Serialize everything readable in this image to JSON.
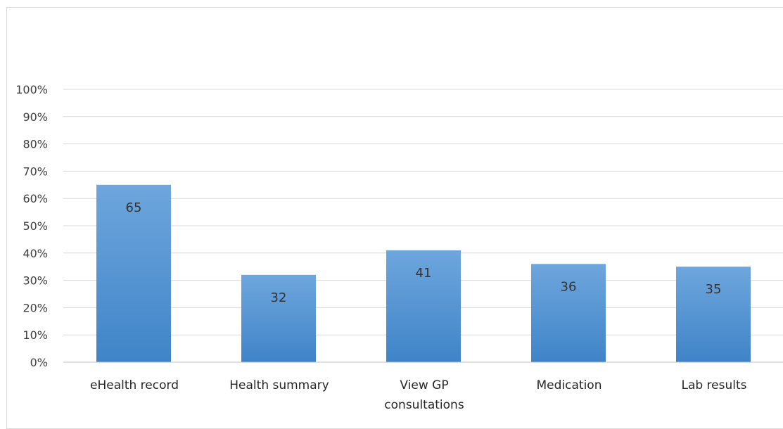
{
  "chart_data": {
    "type": "bar",
    "categories": [
      "eHealth record",
      "Health summary",
      "View GP consultations",
      "Medication",
      "Lab results"
    ],
    "category_lines": [
      [
        "eHealth record"
      ],
      [
        "Health summary"
      ],
      [
        "View GP",
        "consultations"
      ],
      [
        "Medication"
      ],
      [
        "Lab results"
      ]
    ],
    "values": [
      65,
      32,
      41,
      36,
      35
    ],
    "data_labels": [
      "65",
      "32",
      "41",
      "36",
      "35"
    ],
    "ylim": [
      0,
      100
    ],
    "yticks": [
      0,
      10,
      20,
      30,
      40,
      50,
      60,
      70,
      80,
      90,
      100
    ],
    "ytick_labels": [
      "0%",
      "10%",
      "20%",
      "30%",
      "40%",
      "50%",
      "60%",
      "70%",
      "80%",
      "90%",
      "100%"
    ],
    "grid": true,
    "colors": {
      "bar_top": "#6ea6dd",
      "bar_bottom": "#3f84c8",
      "grid": "#d9d9d9",
      "axis": "#bfbfbf"
    }
  }
}
